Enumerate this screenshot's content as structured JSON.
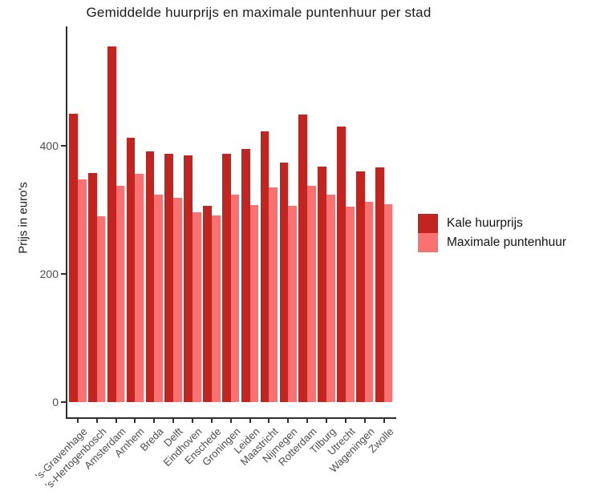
{
  "chart_data": {
    "type": "bar",
    "title": "Gemiddelde huurprijs en maximale puntenhuur per stad",
    "ylabel": "Prijs in euro's",
    "xlabel": "",
    "ylim": [
      0,
      586
    ],
    "yticks": [
      0,
      200,
      400
    ],
    "grid": false,
    "legend_position": "right",
    "categories": [
      "'s-Gravenhage",
      "'s-Hertogenbosch",
      "Amsterdam",
      "Arnhem",
      "Breda",
      "Delft",
      "Eindhoven",
      "Enschede",
      "Groningen",
      "Leiden",
      "Maastricht",
      "Nijmegen",
      "Rotterdam",
      "Tilburg",
      "Utrecht",
      "Wageningen",
      "Zwolle"
    ],
    "series": [
      {
        "name": "Kale huurprijs",
        "color": "#C3241F",
        "values": [
          450,
          358,
          555,
          413,
          391,
          387,
          385,
          306,
          387,
          395,
          422,
          374,
          449,
          368,
          430,
          360,
          366
        ]
      },
      {
        "name": "Maximale puntenhuur",
        "color": "#F97171",
        "values": [
          348,
          290,
          338,
          356,
          324,
          319,
          296,
          291,
          324,
          307,
          335,
          306,
          338,
          324,
          305,
          312,
          309
        ]
      }
    ]
  }
}
